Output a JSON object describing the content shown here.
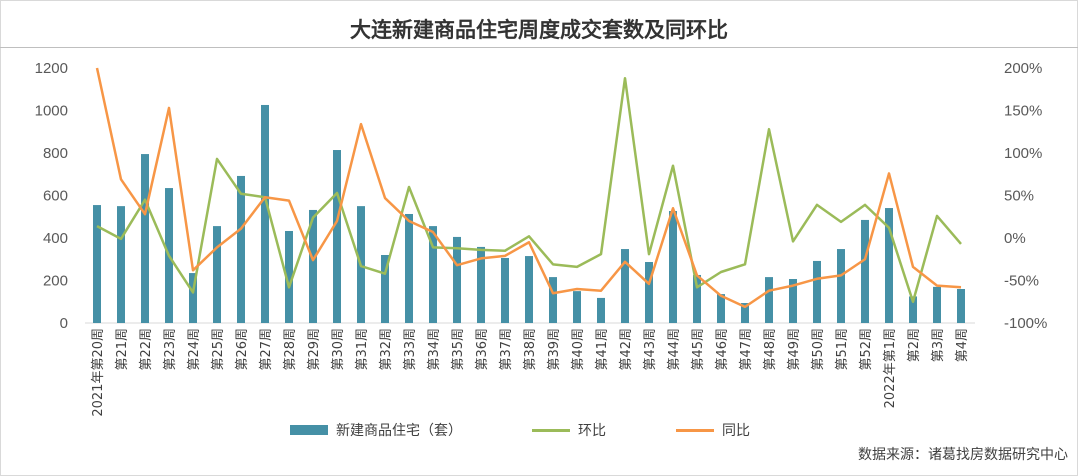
{
  "chart_data": {
    "type": "bar+line",
    "title": "大连新建商品住宅周度成交套数及同环比",
    "categories": [
      "2021年第20周",
      "第21周",
      "第22周",
      "第23周",
      "第24周",
      "第25周",
      "第26周",
      "第27周",
      "第28周",
      "第29周",
      "第30周",
      "第31周",
      "第32周",
      "第33周",
      "第34周",
      "第35周",
      "第36周",
      "第37周",
      "第38周",
      "第39周",
      "第40周",
      "第41周",
      "第42周",
      "第43周",
      "第44周",
      "第45周",
      "第46周",
      "第47周",
      "第48周",
      "第49周",
      "第50周",
      "第51周",
      "第52周",
      "2022年第1周",
      "第2周",
      "第3周",
      "第4周"
    ],
    "left_axis": {
      "ylim": [
        0,
        1200
      ],
      "ticks": [
        "0",
        "200",
        "400",
        "600",
        "800",
        "1000",
        "1200"
      ]
    },
    "right_axis": {
      "ylim": [
        -100,
        200
      ],
      "ticks": [
        "-100%",
        "-50%",
        "0%",
        "50%",
        "100%",
        "150%",
        "200%"
      ]
    },
    "series": [
      {
        "name": "新建商品住宅（套）",
        "type": "bar",
        "axis": "left",
        "color": "#4590a6",
        "values": [
          555,
          550,
          795,
          635,
          235,
          456,
          692,
          1026,
          433,
          532,
          814,
          550,
          320,
          513,
          456,
          405,
          358,
          306,
          315,
          216,
          150,
          118,
          348,
          287,
          527,
          226,
          136,
          94,
          216,
          207,
          292,
          348,
          485,
          541,
          125,
          170,
          160
        ]
      },
      {
        "name": "环比",
        "type": "line",
        "axis": "right",
        "color": "#9bbb59",
        "values": [
          14,
          -1,
          45,
          -21,
          -64,
          93,
          52,
          48,
          -58,
          24,
          53,
          -33,
          -42,
          60,
          -11,
          -12,
          -14,
          -15,
          2,
          -31,
          -34,
          -19,
          188,
          -19,
          85,
          -58,
          -40,
          -31,
          128,
          -4,
          39,
          19,
          39,
          12,
          -75,
          26,
          -7
        ]
      },
      {
        "name": "同比",
        "type": "line",
        "axis": "right",
        "color": "#f79646",
        "values": [
          200,
          69,
          28,
          153,
          -38,
          -11,
          11,
          48,
          44,
          -26,
          20,
          134,
          47,
          20,
          7,
          -32,
          -24,
          -21,
          -5,
          -65,
          -60,
          -62,
          -28,
          -54,
          35,
          -44,
          -68,
          -81,
          -62,
          -56,
          -48,
          -44,
          -25,
          76,
          -34,
          -56,
          -58
        ]
      }
    ],
    "legend_position": "bottom",
    "source": "数据来源：诸葛找房数据研究中心"
  }
}
